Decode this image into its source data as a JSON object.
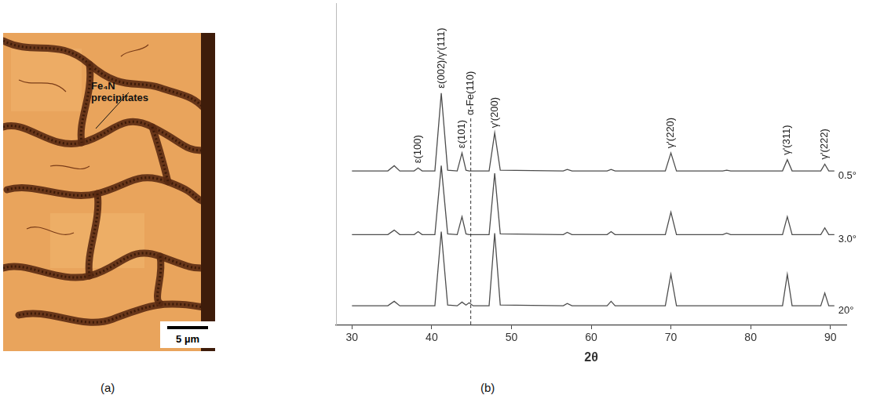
{
  "image": {
    "label": "(a)",
    "annotation": "Fe₄N precipitates",
    "scale_bar": "5 µm"
  },
  "chart_data": {
    "type": "line",
    "panel_label": "(b)",
    "x_label": "2θ",
    "color": "#4d4d4d",
    "grid": false,
    "tick_labels": "x",
    "xlim": [
      28,
      92
    ],
    "xticks": [
      30,
      40,
      50,
      60,
      70,
      80,
      90
    ],
    "ylim": [
      0,
      430
    ],
    "yticks": [],
    "x": [
      30,
      34.5,
      35.3,
      36,
      37.8,
      38.3,
      38.8,
      40.4,
      41.2,
      42,
      43.2,
      43.8,
      44.3,
      44.7,
      45.2,
      47.2,
      47.9,
      48.6,
      56.5,
      57,
      57.6,
      62,
      62.5,
      63,
      69.3,
      70,
      70.7,
      76.5,
      77,
      77.5,
      84,
      84.6,
      85.2,
      88.8,
      89.3,
      89.8,
      90.5
    ],
    "series": [
      {
        "name": "0.5°",
        "values": [
          206,
          206,
          213,
          206,
          206,
          210,
          206,
          206,
          310,
          207,
          206,
          230,
          207,
          206,
          206,
          206,
          257,
          207,
          206,
          208,
          206,
          206,
          208,
          206,
          206,
          230,
          206,
          206,
          207,
          206,
          206,
          221,
          206,
          206,
          215,
          206,
          206
        ]
      },
      {
        "name": "3.0°",
        "values": [
          121,
          121,
          127,
          121,
          121,
          125,
          121,
          121,
          213,
          122,
          121,
          145,
          122,
          121,
          121,
          121,
          203,
          122,
          121,
          124,
          121,
          121,
          125,
          121,
          121,
          151,
          121,
          121,
          123,
          121,
          121,
          145,
          121,
          121,
          130,
          121,
          121
        ]
      },
      {
        "name": "20°",
        "values": [
          26,
          26,
          32,
          26,
          26,
          26,
          26,
          26,
          125,
          27,
          26,
          31,
          27,
          30,
          26,
          26,
          123,
          27,
          26,
          29,
          26,
          26,
          32,
          26,
          26,
          68,
          26,
          26,
          26,
          26,
          26,
          68,
          26,
          26,
          43,
          26,
          26
        ]
      }
    ],
    "annotations": [
      {
        "text": "ε(100)",
        "x": 38.3
      },
      {
        "text": "ε(002)/γ'(111)",
        "x": 41.2
      },
      {
        "text": "ε(101)",
        "x": 43.8
      },
      {
        "text": "α-Fe(110)",
        "x": 44.9,
        "line_style": "dashed"
      },
      {
        "text": "γ'(200)",
        "x": 47.9
      },
      {
        "text": "γ'(220)",
        "x": 70
      },
      {
        "text": "γ'(311)",
        "x": 84.6
      },
      {
        "text": "γ'(222)",
        "x": 89.3
      }
    ]
  }
}
